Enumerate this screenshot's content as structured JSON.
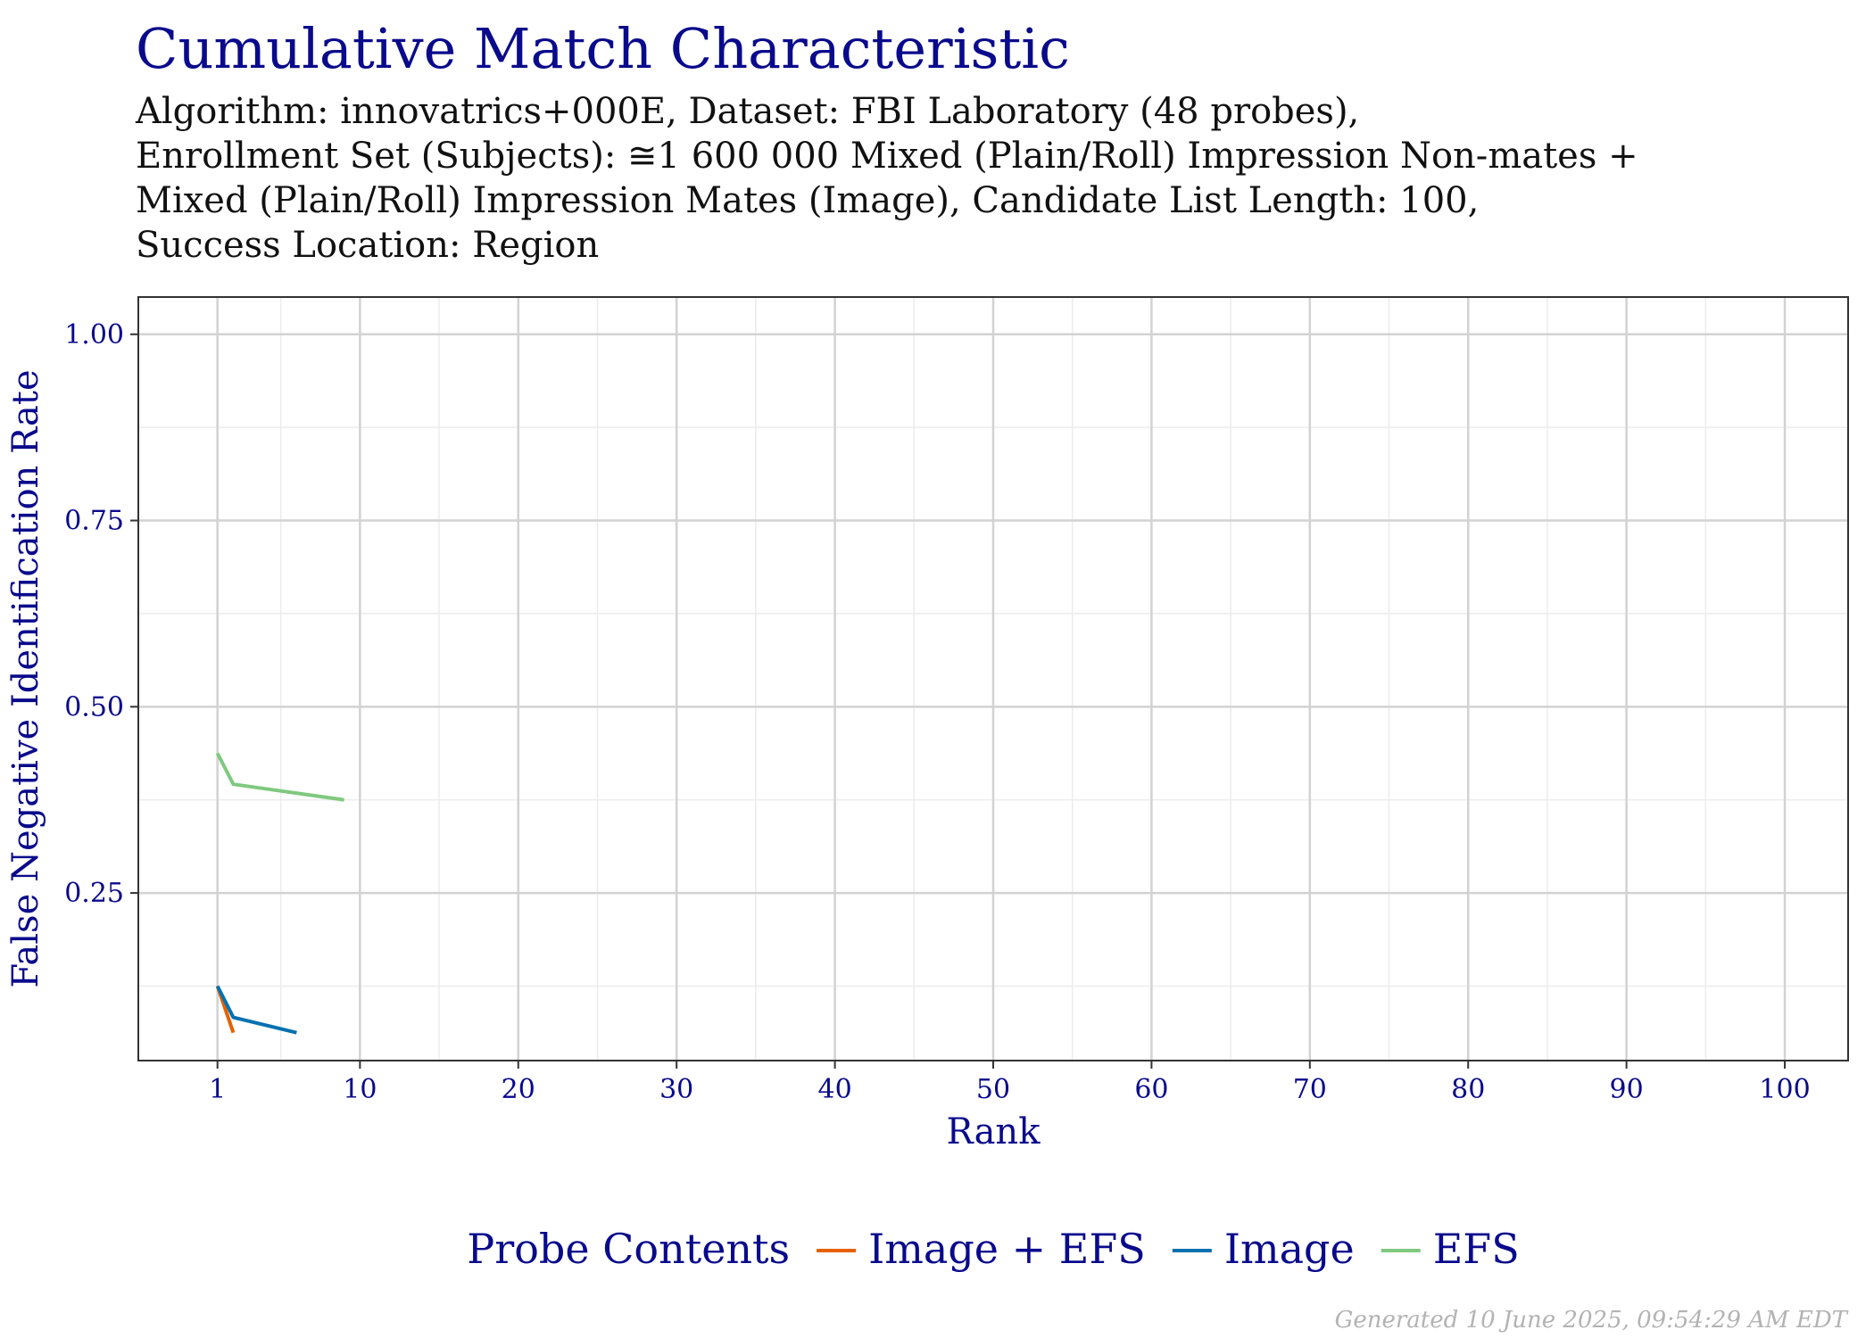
{
  "chart_data": {
    "type": "line",
    "title": "Cumulative Match Characteristic",
    "subtitle_lines": [
      "Algorithm: innovatrics+000E, Dataset: FBI Laboratory (48 probes),",
      "Enrollment Set (Subjects): ≅1 600 000 Mixed (Plain/Roll) Impression Non-mates +",
      "Mixed (Plain/Roll) Impression Mates (Image), Candidate List Length: 100,",
      "Success Location: Region"
    ],
    "xlabel": "Rank",
    "ylabel": "False Negative Identification Rate",
    "xlim": [
      -4,
      104
    ],
    "ylim": [
      0.025,
      1.05
    ],
    "x_ticks": [
      1,
      10,
      20,
      30,
      40,
      50,
      60,
      70,
      80,
      90,
      100
    ],
    "x_tick_labels": [
      "1",
      "10",
      "20",
      "30",
      "40",
      "50",
      "60",
      "70",
      "80",
      "90",
      "100"
    ],
    "y_ticks": [
      0.25,
      0.5,
      0.75,
      1.0
    ],
    "y_tick_labels": [
      "0.25",
      "0.50",
      "0.75",
      "1.00"
    ],
    "grid": true,
    "legend_position": "bottom",
    "legend_title": "Probe Contents",
    "series": [
      {
        "name": "Image + EFS",
        "color": "#e66101",
        "x": [
          1,
          2
        ],
        "y": [
          0.125,
          0.0625
        ]
      },
      {
        "name": "Image",
        "color": "#0571b0",
        "x": [
          1,
          2,
          6
        ],
        "y": [
          0.125,
          0.083,
          0.0625
        ]
      },
      {
        "name": "EFS",
        "color": "#7fc97f",
        "x": [
          1,
          2,
          9
        ],
        "y": [
          0.4375,
          0.396,
          0.375
        ]
      }
    ]
  },
  "footer": "Generated 10 June 2025, 09:54:29 AM EDT"
}
